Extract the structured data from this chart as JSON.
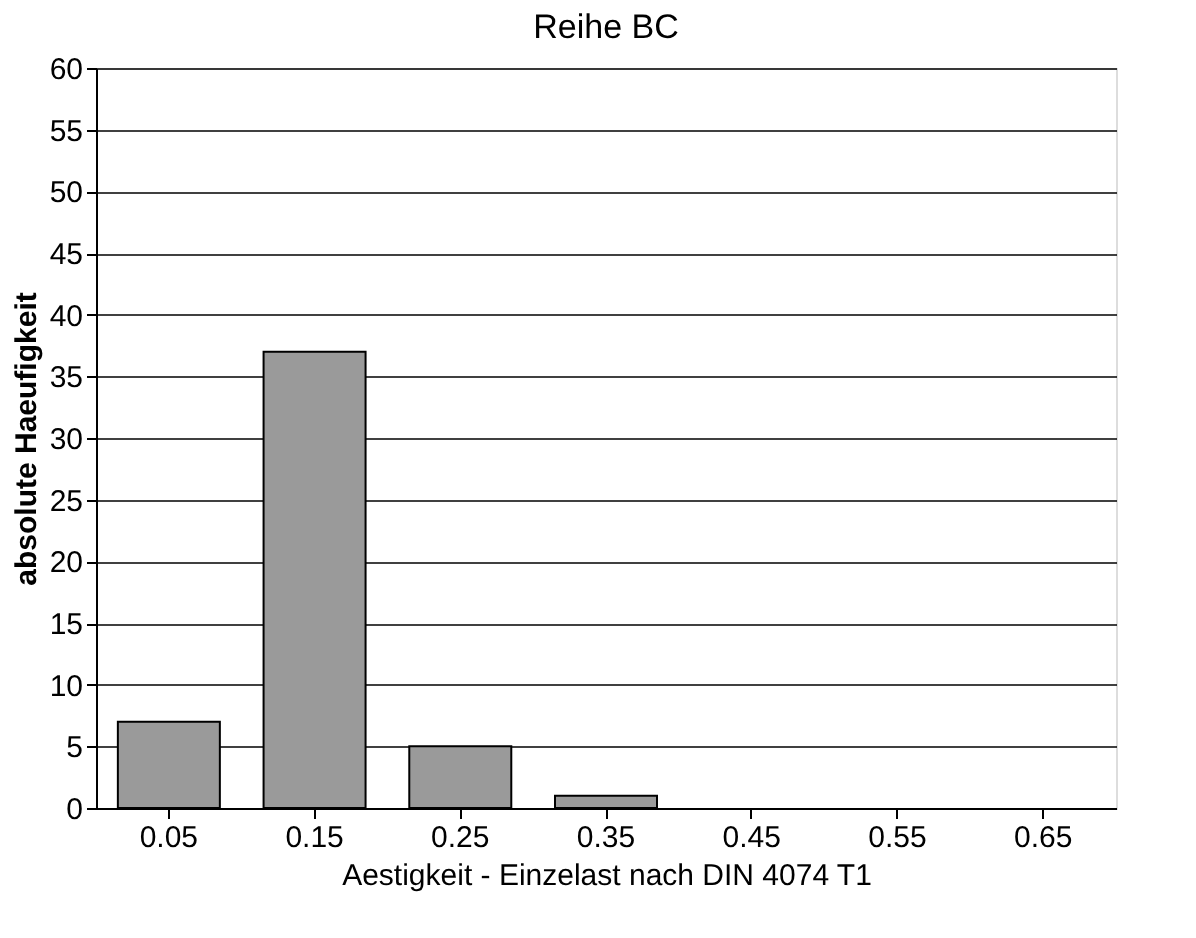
{
  "chart_data": {
    "type": "bar",
    "title": "Reihe BC",
    "xlabel": "Aestigkeit - Einzelast nach DIN 4074 T1",
    "ylabel": "absolute Haeufigkeit",
    "categories": [
      "0.05",
      "0.15",
      "0.25",
      "0.35",
      "0.45",
      "0.55",
      "0.65"
    ],
    "values": [
      7,
      37,
      5,
      1,
      0,
      0,
      0
    ],
    "color": "#9a9a9a",
    "ylim": [
      0,
      60
    ],
    "yticks": [
      0,
      5,
      10,
      15,
      20,
      25,
      30,
      35,
      40,
      45,
      50,
      55,
      60
    ],
    "grid": "y"
  }
}
